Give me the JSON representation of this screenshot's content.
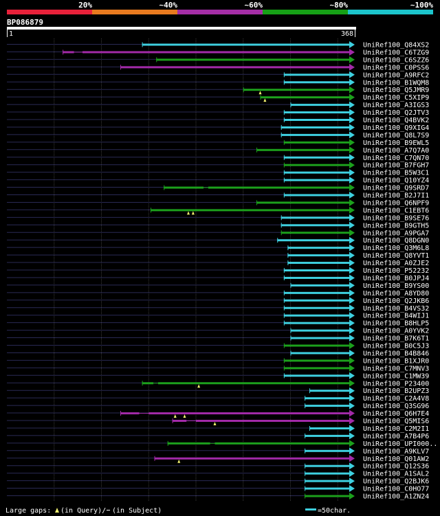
{
  "legend": {
    "labels": [
      "20%",
      "~40%",
      "~60%",
      "~80%",
      "~100%"
    ],
    "colors": [
      "#e8213a",
      "#e87a1f",
      "#a42ea6",
      "#16a016",
      "#1cc4cc"
    ]
  },
  "query": {
    "name": "BP086879",
    "start": "1",
    "end": "368",
    "length": 368
  },
  "palette": {
    "cyan": "#3ed0e0",
    "green": "#1ca01c",
    "purple": "#a22aa8",
    "background": "#000000",
    "guide": "#2a2a55",
    "vline": "#3a3a3a"
  },
  "hits": [
    {
      "name": "UniRef100_Q84XS2",
      "color": "cyan",
      "start": 143,
      "end": 368,
      "gaps": []
    },
    {
      "name": "UniRef100_C6TZG9",
      "color": "purple",
      "start": 59,
      "end": 368,
      "gaps": [
        {
          "from": 71,
          "to": 80
        }
      ]
    },
    {
      "name": "UniRef100_C6SZZ6",
      "color": "green",
      "start": 158,
      "end": 368,
      "gaps": []
    },
    {
      "name": "UniRef100_C0PSS6",
      "color": "purple",
      "start": 120,
      "end": 368,
      "gaps": []
    },
    {
      "name": "UniRef100_A9RFC2",
      "color": "cyan",
      "start": 293,
      "end": 368,
      "gaps": []
    },
    {
      "name": "UniRef100_B1WQM8",
      "color": "cyan",
      "start": 293,
      "end": 368,
      "gaps": []
    },
    {
      "name": "UniRef100_Q5JMR9",
      "color": "green",
      "start": 250,
      "end": 368,
      "gaps": [],
      "marks": [
        268
      ]
    },
    {
      "name": "UniRef100_C5XIP9",
      "color": "green",
      "start": 268,
      "end": 368,
      "gaps": [],
      "marks": [
        273
      ]
    },
    {
      "name": "UniRef100_A3IGS3",
      "color": "cyan",
      "start": 300,
      "end": 368,
      "gaps": []
    },
    {
      "name": "UniRef100_Q2JTV3",
      "color": "cyan",
      "start": 293,
      "end": 368,
      "gaps": []
    },
    {
      "name": "UniRef100_Q4BVK2",
      "color": "cyan",
      "start": 293,
      "end": 368,
      "gaps": []
    },
    {
      "name": "UniRef100_Q9XIG4",
      "color": "cyan",
      "start": 290,
      "end": 368,
      "gaps": []
    },
    {
      "name": "UniRef100_Q8L7S9",
      "color": "cyan",
      "start": 290,
      "end": 368,
      "gaps": []
    },
    {
      "name": "UniRef100_B9EWL5",
      "color": "green",
      "start": 293,
      "end": 368,
      "gaps": []
    },
    {
      "name": "UniRef100_A7Q7A0",
      "color": "green",
      "start": 264,
      "end": 368,
      "gaps": []
    },
    {
      "name": "UniRef100_C7QN70",
      "color": "cyan",
      "start": 293,
      "end": 368,
      "gaps": []
    },
    {
      "name": "UniRef100_B7FGH7",
      "color": "green",
      "start": 293,
      "end": 368,
      "gaps": []
    },
    {
      "name": "UniRef100_B5W3C1",
      "color": "cyan",
      "start": 293,
      "end": 368,
      "gaps": []
    },
    {
      "name": "UniRef100_Q10YZ4",
      "color": "cyan",
      "start": 293,
      "end": 368,
      "gaps": []
    },
    {
      "name": "UniRef100_Q9SRD7",
      "color": "green",
      "start": 166,
      "end": 368,
      "gaps": [
        {
          "from": 208,
          "to": 213
        }
      ]
    },
    {
      "name": "UniRef100_B2J7I1",
      "color": "cyan",
      "start": 293,
      "end": 368,
      "gaps": []
    },
    {
      "name": "UniRef100_Q6NPF9",
      "color": "green",
      "start": 264,
      "end": 368,
      "gaps": []
    },
    {
      "name": "UniRef100_C1EBT6",
      "color": "green",
      "start": 152,
      "end": 368,
      "gaps": [],
      "marks": [
        192,
        197
      ]
    },
    {
      "name": "UniRef100_B9SE76",
      "color": "cyan",
      "start": 290,
      "end": 368,
      "gaps": []
    },
    {
      "name": "UniRef100_B9GTH5",
      "color": "cyan",
      "start": 290,
      "end": 368,
      "gaps": []
    },
    {
      "name": "UniRef100_A9PGA7",
      "color": "green",
      "start": 290,
      "end": 368,
      "gaps": []
    },
    {
      "name": "UniRef100_Q8DGN0",
      "color": "cyan",
      "start": 286,
      "end": 368,
      "gaps": []
    },
    {
      "name": "UniRef100_Q3M6L8",
      "color": "cyan",
      "start": 297,
      "end": 368,
      "gaps": []
    },
    {
      "name": "UniRef100_Q8YVT1",
      "color": "cyan",
      "start": 297,
      "end": 368,
      "gaps": []
    },
    {
      "name": "UniRef100_A0ZJE2",
      "color": "cyan",
      "start": 297,
      "end": 368,
      "gaps": []
    },
    {
      "name": "UniRef100_P52232",
      "color": "cyan",
      "start": 293,
      "end": 368,
      "gaps": []
    },
    {
      "name": "UniRef100_B0JPJ4",
      "color": "cyan",
      "start": 293,
      "end": 368,
      "gaps": []
    },
    {
      "name": "UniRef100_B9YS00",
      "color": "cyan",
      "start": 300,
      "end": 368,
      "gaps": []
    },
    {
      "name": "UniRef100_A8YD80",
      "color": "cyan",
      "start": 293,
      "end": 368,
      "gaps": []
    },
    {
      "name": "UniRef100_Q2JKB6",
      "color": "cyan",
      "start": 293,
      "end": 368,
      "gaps": []
    },
    {
      "name": "UniRef100_B4VS32",
      "color": "cyan",
      "start": 293,
      "end": 368,
      "gaps": []
    },
    {
      "name": "UniRef100_B4WIJ1",
      "color": "cyan",
      "start": 293,
      "end": 368,
      "gaps": []
    },
    {
      "name": "UniRef100_B8HLP5",
      "color": "cyan",
      "start": 293,
      "end": 368,
      "gaps": []
    },
    {
      "name": "UniRef100_A0YVK2",
      "color": "cyan",
      "start": 300,
      "end": 368,
      "gaps": []
    },
    {
      "name": "UniRef100_B7K6T1",
      "color": "cyan",
      "start": 300,
      "end": 368,
      "gaps": []
    },
    {
      "name": "UniRef100_B0C5J3",
      "color": "green",
      "start": 293,
      "end": 368,
      "gaps": []
    },
    {
      "name": "UniRef100_B4B846",
      "color": "cyan",
      "start": 300,
      "end": 368,
      "gaps": []
    },
    {
      "name": "UniRef100_B1XJR0",
      "color": "green",
      "start": 293,
      "end": 368,
      "gaps": []
    },
    {
      "name": "UniRef100_C7MNV3",
      "color": "green",
      "start": 293,
      "end": 368,
      "gaps": []
    },
    {
      "name": "UniRef100_C1MW39",
      "color": "cyan",
      "start": 293,
      "end": 368,
      "gaps": []
    },
    {
      "name": "UniRef100_P23400",
      "color": "green",
      "start": 143,
      "end": 368,
      "gaps": [
        {
          "from": 155,
          "to": 160
        }
      ],
      "marks": [
        203
      ]
    },
    {
      "name": "UniRef100_B2UPZ3",
      "color": "cyan",
      "start": 320,
      "end": 368,
      "gaps": []
    },
    {
      "name": "UniRef100_C2A4V8",
      "color": "cyan",
      "start": 315,
      "end": 368,
      "gaps": []
    },
    {
      "name": "UniRef100_Q3SG96",
      "color": "cyan",
      "start": 315,
      "end": 368,
      "gaps": []
    },
    {
      "name": "UniRef100_Q6H7E4",
      "color": "purple",
      "start": 120,
      "end": 368,
      "gaps": [
        {
          "from": 140,
          "to": 150
        }
      ],
      "marks": [
        178,
        188
      ]
    },
    {
      "name": "UniRef100_Q5MIS6",
      "color": "purple",
      "start": 175,
      "end": 368,
      "gaps": [
        {
          "from": 190,
          "to": 200
        }
      ],
      "marks": [
        220
      ]
    },
    {
      "name": "UniRef100_C2M2I1",
      "color": "cyan",
      "start": 320,
      "end": 368,
      "gaps": []
    },
    {
      "name": "UniRef100_A7B4P6",
      "color": "cyan",
      "start": 315,
      "end": 368,
      "gaps": []
    },
    {
      "name": "UniRef100_UPI000..",
      "color": "green",
      "start": 170,
      "end": 368,
      "gaps": [
        {
          "from": 215,
          "to": 220
        }
      ]
    },
    {
      "name": "UniRef100_A9KLV7",
      "color": "cyan",
      "start": 315,
      "end": 368,
      "gaps": []
    },
    {
      "name": "UniRef100_Q01AW2",
      "color": "purple",
      "start": 156,
      "end": 368,
      "gaps": [],
      "marks": [
        182
      ]
    },
    {
      "name": "UniRef100_Q12S36",
      "color": "cyan",
      "start": 315,
      "end": 368,
      "gaps": []
    },
    {
      "name": "UniRef100_A1SAL2",
      "color": "cyan",
      "start": 315,
      "end": 368,
      "gaps": []
    },
    {
      "name": "UniRef100_Q2BJK6",
      "color": "cyan",
      "start": 315,
      "end": 368,
      "gaps": []
    },
    {
      "name": "UniRef100_C0HO77",
      "color": "cyan",
      "start": 315,
      "end": 368,
      "gaps": []
    },
    {
      "name": "UniRef100_A1ZN24",
      "color": "green",
      "start": 315,
      "end": 368,
      "gaps": []
    }
  ],
  "footer": {
    "gaps_label": "Large gaps:",
    "query_gap_text": "(in Query)/",
    "subject_gap_text": "(in Subject)",
    "scale_text": "=50char."
  }
}
